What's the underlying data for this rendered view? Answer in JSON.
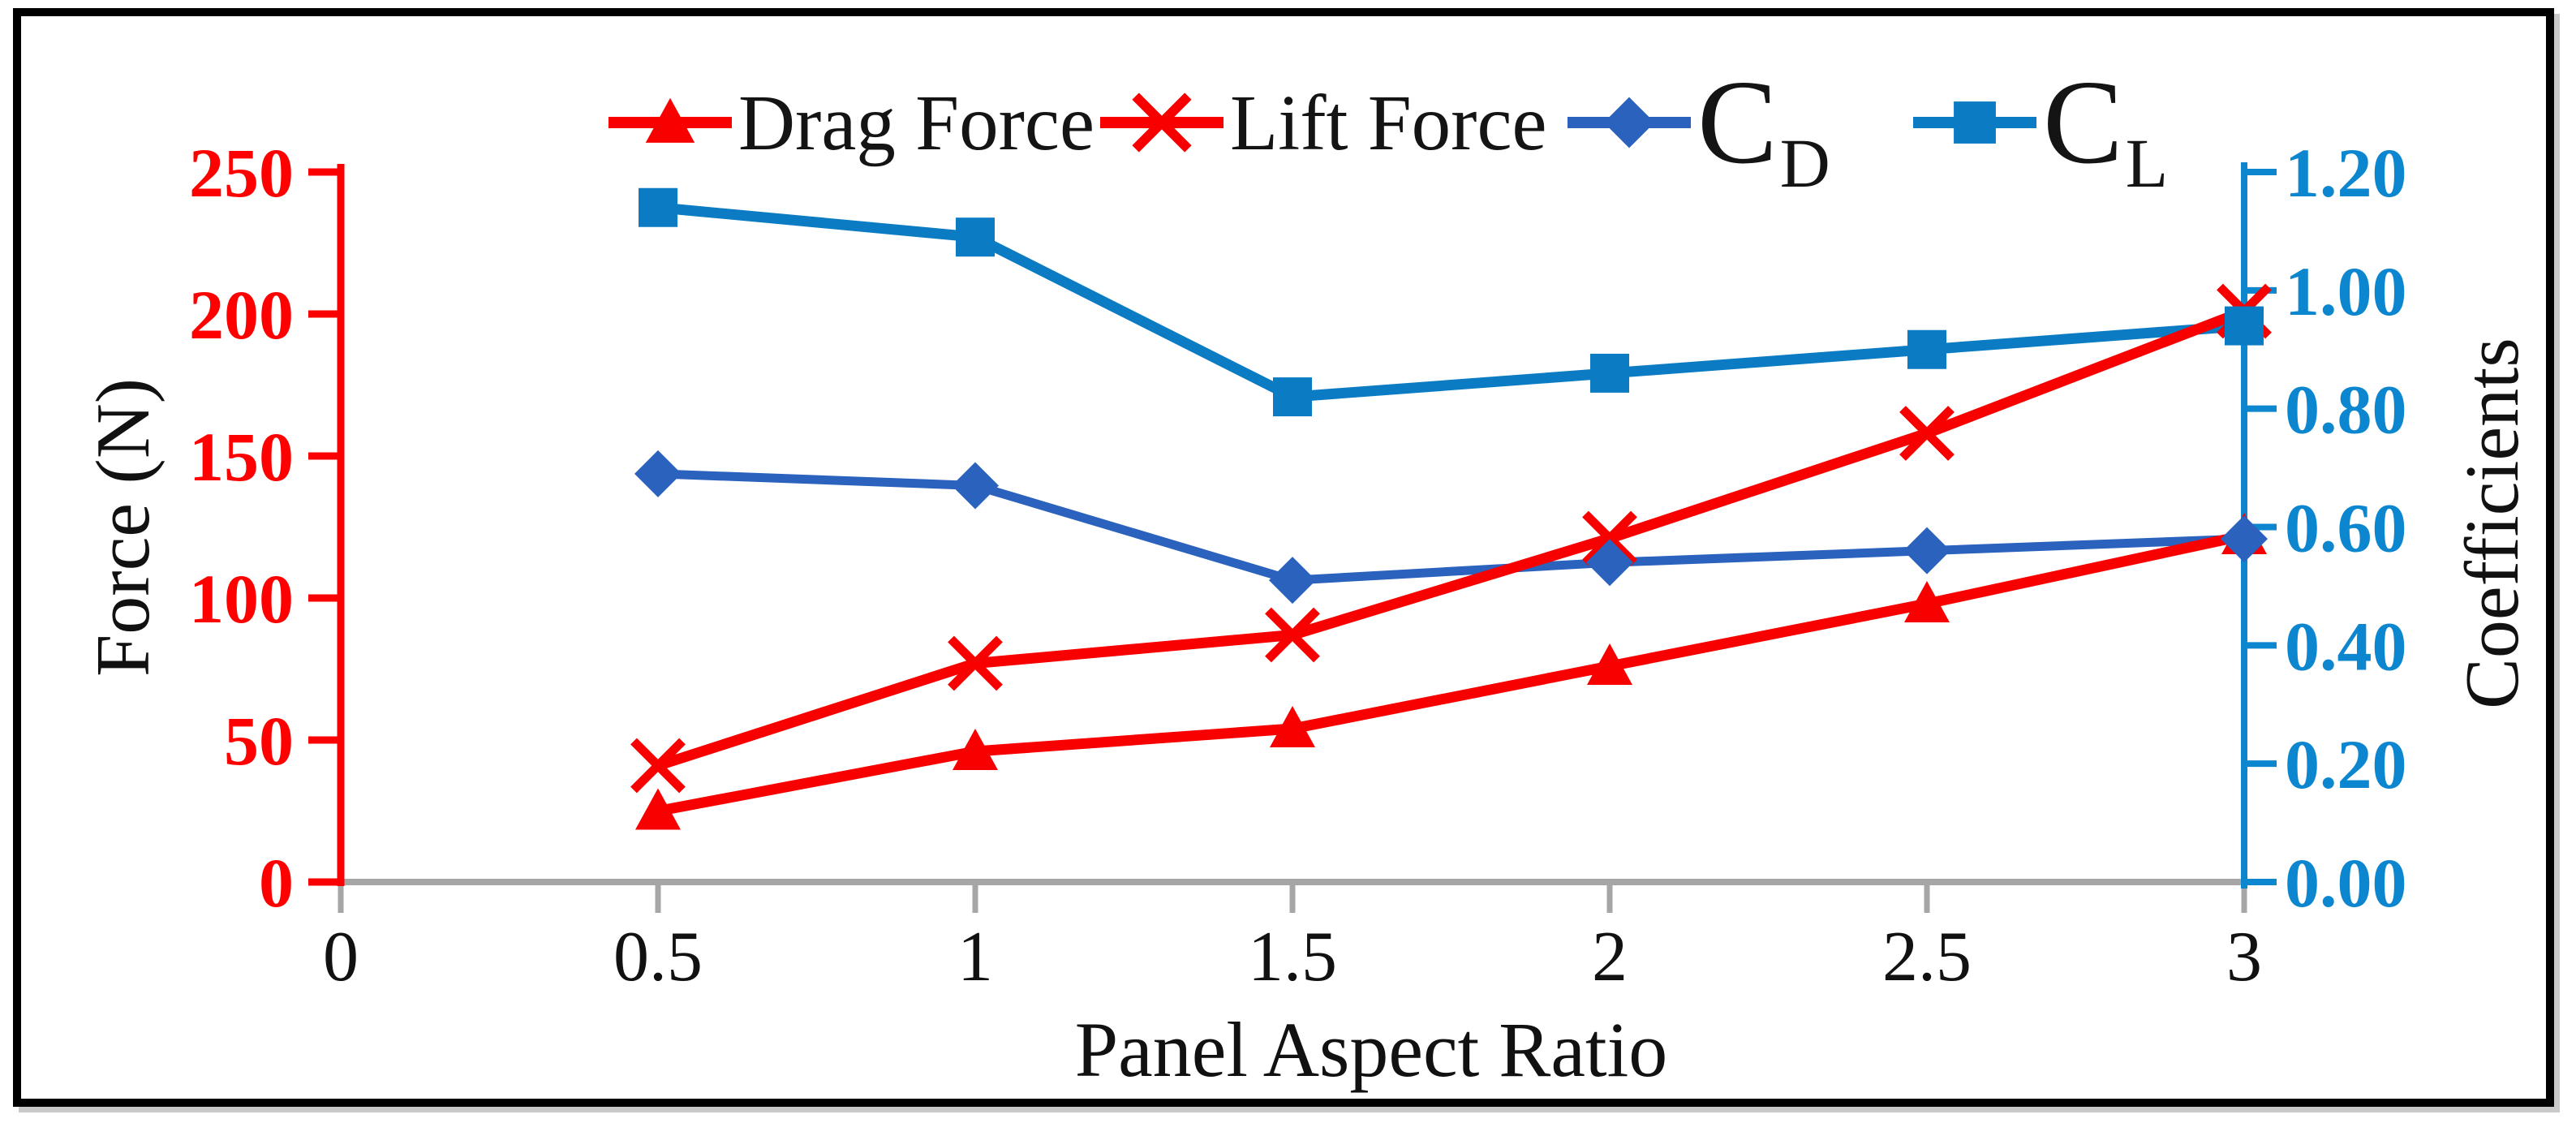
{
  "figure": {
    "background": "#ffffff",
    "border_color": "#000000"
  },
  "legend": {
    "position": "top",
    "items": [
      {
        "main": "Drag Force",
        "sub": ""
      },
      {
        "main": "Lift Force",
        "sub": ""
      },
      {
        "main": "C",
        "sub": "D"
      },
      {
        "main": "C",
        "sub": "L"
      }
    ]
  },
  "chart_data": {
    "type": "line",
    "title": "",
    "grid": false,
    "legend_position": "top",
    "x": [
      0.5,
      1,
      1.5,
      2,
      2.5,
      3
    ],
    "x_axis": {
      "label": "Panel Aspect Ratio",
      "ticks": [
        "0",
        "0.5",
        "1",
        "1.5",
        "2",
        "2.5",
        "3"
      ],
      "range": [
        0,
        3
      ],
      "line_color": "#A6A6A6",
      "tick_label_color": "#111111"
    },
    "left_axis": {
      "label": "Force (N)",
      "ticks": [
        "250",
        "200",
        "150",
        "100",
        "50",
        "0"
      ],
      "range": [
        0,
        250
      ],
      "color": "#FA0000",
      "tick_label_color": "#FF0000"
    },
    "right_axis": {
      "label": "Coefficients",
      "ticks": [
        "1.20",
        "1.00",
        "0.80",
        "0.60",
        "0.40",
        "0.20",
        "0.00"
      ],
      "range": [
        0,
        1.2
      ],
      "color": "#0C86CE",
      "tick_label_color": "#0C86CE"
    },
    "series": [
      {
        "name": "Drag Force",
        "axis": "left",
        "marker": "triangle",
        "color": "#F80000",
        "values": [
          25,
          46,
          54,
          76,
          98,
          122
        ]
      },
      {
        "name": "Lift Force",
        "axis": "left",
        "marker": "x",
        "color": "#F80000",
        "values": [
          41,
          77,
          87,
          121,
          158,
          201
        ]
      },
      {
        "name": "C_D",
        "axis": "right",
        "marker": "diamond",
        "color": "#2A62BE",
        "values": [
          0.69,
          0.67,
          0.51,
          0.54,
          0.56,
          0.58
        ]
      },
      {
        "name": "C_L",
        "axis": "right",
        "marker": "square",
        "color": "#0B7CC4",
        "values": [
          1.14,
          1.09,
          0.82,
          0.86,
          0.9,
          0.94
        ]
      }
    ]
  }
}
